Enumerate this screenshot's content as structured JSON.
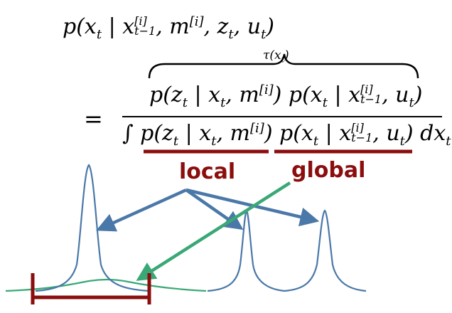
{
  "equation": {
    "lhs": "p(x_t | x_{t-1}^{[i]}, m^{[i]}, z_t, u_t)",
    "tau": "τ(x_t)",
    "equals": "=",
    "numerator": "p(z_t | x_t, m^{[i]}) p(x_t | x_{t-1}^{[i]}, u_t)",
    "denominator": "∫ p(z_t | x_t, m^{[i]}) p(x_t | x_{t-1}^{[i]}, u_t) dx_t"
  },
  "labels": {
    "local": "local",
    "global": "global"
  },
  "colors": {
    "underline": "#8b0d0d",
    "label": "#8b0d0d",
    "curve_blue": "#4a78a8",
    "curve_green": "#3aa876",
    "arrow_blue": "#4a78a8",
    "arrow_green": "#3aa876",
    "bracket": "#8b0d0d"
  }
}
